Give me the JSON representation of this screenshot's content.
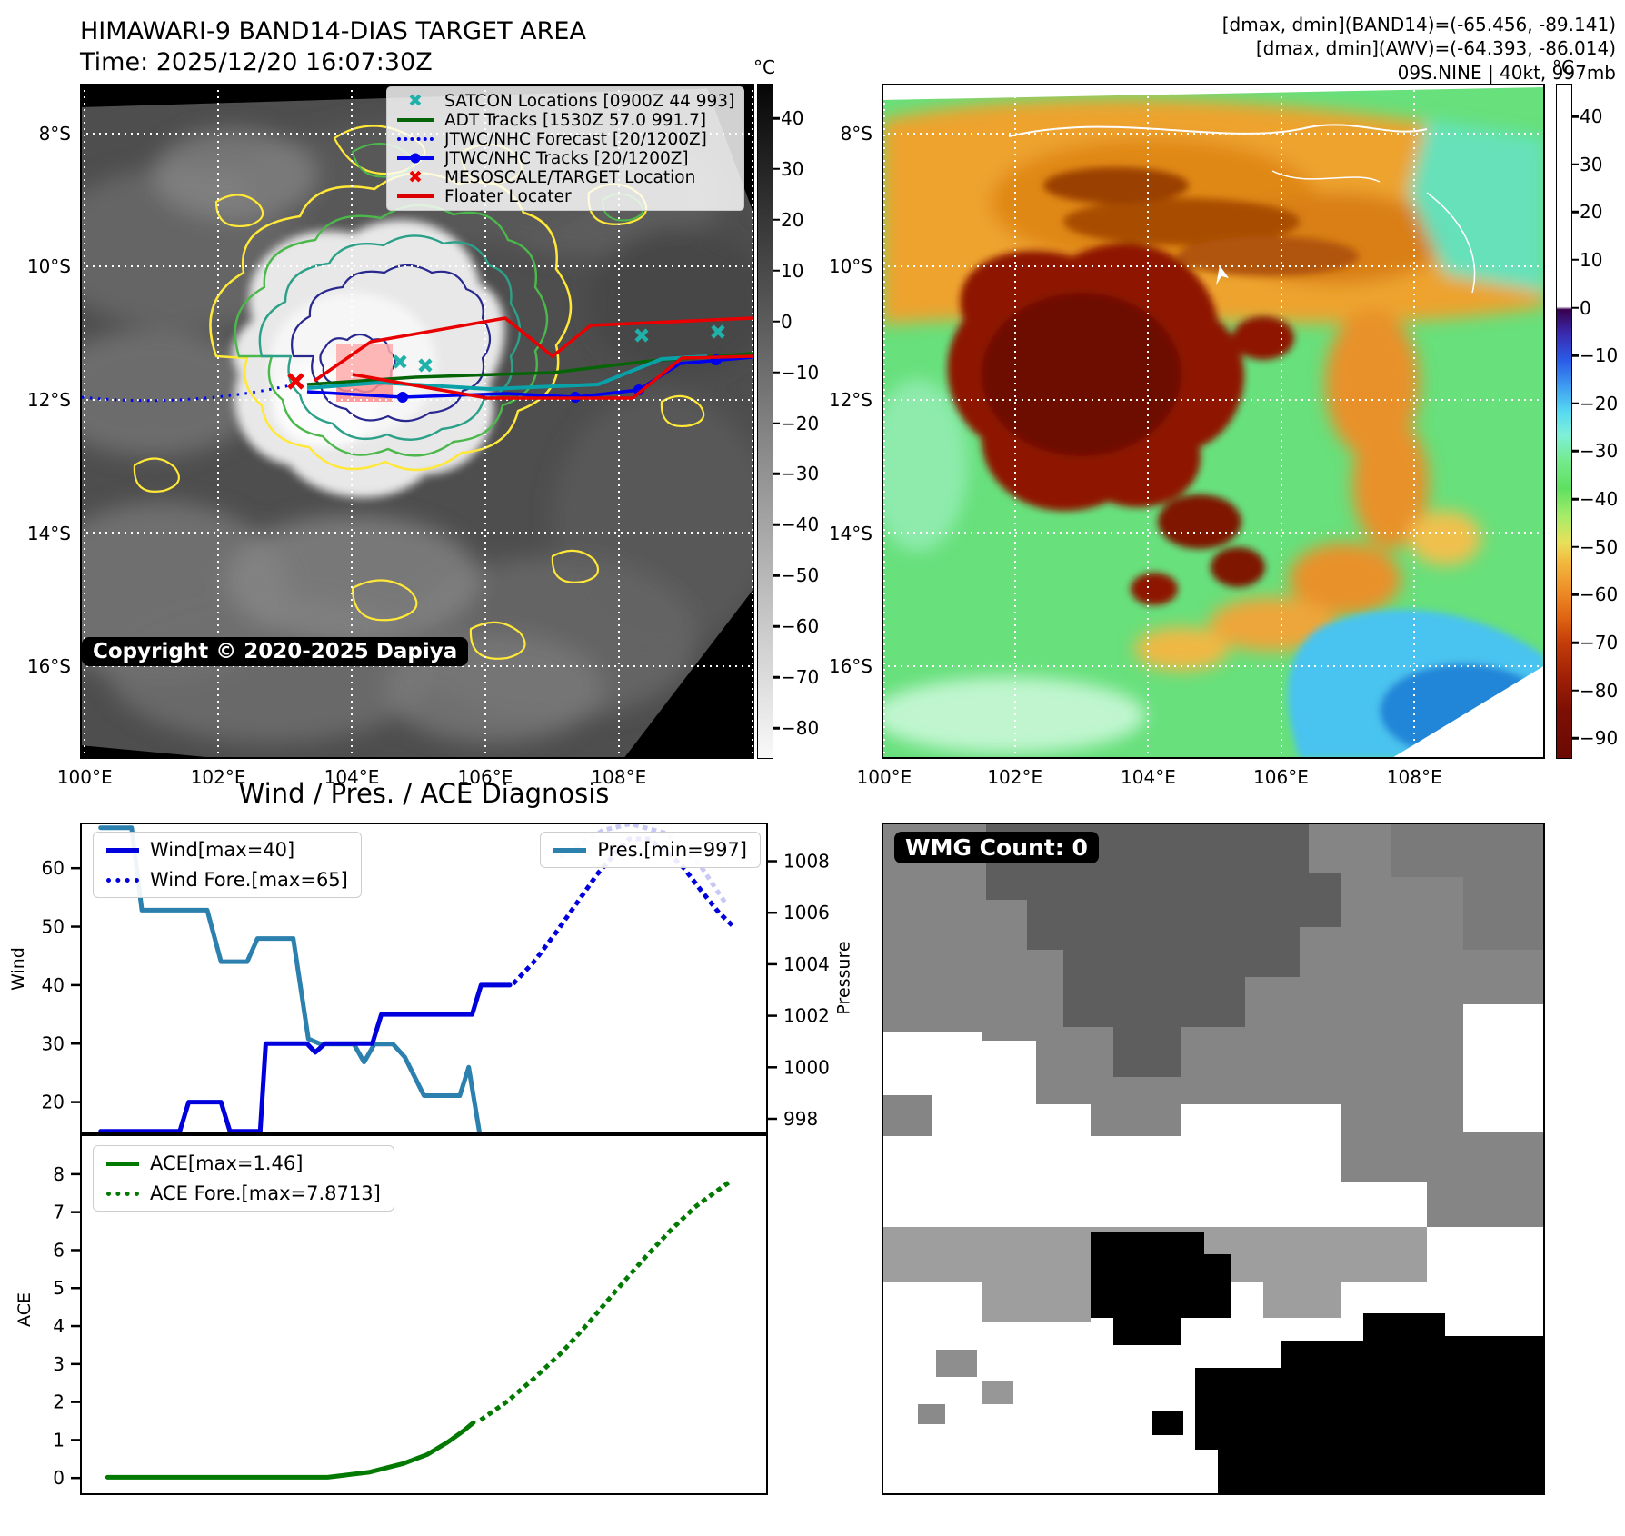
{
  "header": {
    "title": "HIMAWARI-9 BAND14-DIAS TARGET AREA",
    "time": "Time: 2025/12/20 16:07:30Z",
    "info_lines": [
      "[dmax, dmin](BAND14)=(-65.456, -89.141)",
      "[dmax, dmin](AWV)=(-64.393, -86.014)",
      "09S.NINE | 40kt, 997mb"
    ]
  },
  "left_map": {
    "copyright": "Copyright © 2020-2025 Dapiya",
    "lat_ticks": [
      "8°S",
      "10°S",
      "12°S",
      "14°S",
      "16°S"
    ],
    "lon_ticks": [
      "100°E",
      "102°E",
      "104°E",
      "106°E",
      "108°E"
    ],
    "colorbar": {
      "unit": "°C",
      "ticks": [
        "40",
        "30",
        "20",
        "10",
        "0",
        "−10",
        "−20",
        "−30",
        "−40",
        "−50",
        "−60",
        "−70",
        "−80"
      ]
    },
    "legend": [
      {
        "label": "SATCON Locations [0900Z 44 993]",
        "marker": "x",
        "color": "#1fb2aa"
      },
      {
        "label": "ADT Tracks [1530Z 57.0 991.7]",
        "marker": "line",
        "color": "#056405"
      },
      {
        "label": "JTWC/NHC Forecast [20/1200Z]",
        "marker": "dotted",
        "color": "#0000ee"
      },
      {
        "label": "JTWC/NHC Tracks [20/1200Z]",
        "marker": "line-dot",
        "color": "#0000ee"
      },
      {
        "label": "MESOSCALE/TARGET Location",
        "marker": "x",
        "color": "#ee0000"
      },
      {
        "label": "Floater Locater",
        "marker": "line",
        "color": "#dd0000"
      }
    ]
  },
  "right_map": {
    "lat_ticks": [
      "8°S",
      "10°S",
      "12°S",
      "14°S",
      "16°S"
    ],
    "lon_ticks": [
      "100°E",
      "102°E",
      "104°E",
      "106°E",
      "108°E"
    ],
    "colorbar": {
      "unit": "°C",
      "ticks": [
        "40",
        "30",
        "20",
        "10",
        "0",
        "−10",
        "−20",
        "−30",
        "−40",
        "−50",
        "−60",
        "−70",
        "−80",
        "−90"
      ]
    }
  },
  "wmg": {
    "label": "WMG Count: 0"
  },
  "chart_title": "Wind / Pres. / ACE Diagnosis",
  "chart_data": [
    {
      "type": "line",
      "title": "Wind / Pres. / ACE Diagnosis",
      "ylabel": "Wind",
      "y2label": "Pressure",
      "ylim": [
        14.5,
        67.8
      ],
      "y2lim": [
        997.4,
        1009.5
      ],
      "yticks": [
        20,
        30,
        40,
        50,
        60
      ],
      "y2ticks": [
        998,
        1000,
        1002,
        1004,
        1006,
        1008
      ],
      "legend_left": [
        {
          "label": "Wind[max=40]",
          "style": "solid",
          "color": "#0000dd"
        },
        {
          "label": "Wind Fore.[max=65]",
          "style": "dotted",
          "color": "#0000dd"
        }
      ],
      "legend_right": [
        {
          "label": "Pres.[min=997]",
          "style": "solid",
          "color": "#2c80ad"
        }
      ],
      "series": [
        {
          "name": "Pres.",
          "axis": "y2",
          "style": "solid",
          "color": "#2c80ad",
          "width": 5,
          "points": [
            [
              0.03,
              1009.3
            ],
            [
              0.075,
              1009.3
            ],
            [
              0.09,
              1006.1
            ],
            [
              0.185,
              1006.1
            ],
            [
              0.205,
              1004.1
            ],
            [
              0.243,
              1004.1
            ],
            [
              0.258,
              1005.0
            ],
            [
              0.31,
              1005.0
            ],
            [
              0.332,
              1001.1
            ],
            [
              0.35,
              1000.9
            ],
            [
              0.398,
              1000.9
            ],
            [
              0.413,
              1000.2
            ],
            [
              0.428,
              1000.9
            ],
            [
              0.455,
              1000.9
            ],
            [
              0.472,
              1000.4
            ],
            [
              0.5,
              998.9
            ],
            [
              0.552,
              998.9
            ],
            [
              0.565,
              1000.0
            ],
            [
              0.583,
              997.1
            ]
          ]
        },
        {
          "name": "Pres. Fore.",
          "axis": "y2",
          "style": "dotted",
          "color": "#c8c8f4",
          "width": 5,
          "points": [
            [
              0.7,
              1008.2
            ],
            [
              0.76,
              1009.2
            ],
            [
              0.8,
              1009.45
            ],
            [
              0.85,
              1009.1
            ],
            [
              0.9,
              1007.9
            ],
            [
              0.94,
              1006.3
            ]
          ]
        },
        {
          "name": "Wind",
          "axis": "y",
          "style": "solid",
          "color": "#0000dd",
          "width": 5,
          "points": [
            [
              0.03,
              15
            ],
            [
              0.145,
              15
            ],
            [
              0.158,
              20
            ],
            [
              0.205,
              20
            ],
            [
              0.218,
              15
            ],
            [
              0.262,
              15
            ],
            [
              0.27,
              30
            ],
            [
              0.33,
              30
            ],
            [
              0.342,
              28.5
            ],
            [
              0.356,
              30
            ],
            [
              0.425,
              30
            ],
            [
              0.438,
              35
            ],
            [
              0.57,
              35
            ],
            [
              0.583,
              40
            ],
            [
              0.625,
              40
            ]
          ]
        },
        {
          "name": "Wind Fore.",
          "axis": "y",
          "style": "dotted",
          "color": "#0000dd",
          "width": 5,
          "points": [
            [
              0.632,
              40.5
            ],
            [
              0.66,
              44
            ],
            [
              0.692,
              49
            ],
            [
              0.722,
              54
            ],
            [
              0.752,
              59
            ],
            [
              0.778,
              62.5
            ],
            [
              0.798,
              65
            ],
            [
              0.826,
              65
            ],
            [
              0.852,
              63
            ],
            [
              0.878,
              60
            ],
            [
              0.904,
              56
            ],
            [
              0.928,
              52.5
            ],
            [
              0.95,
              50
            ]
          ]
        }
      ]
    },
    {
      "type": "line",
      "ylabel": "ACE",
      "ylim": [
        -0.45,
        9.05
      ],
      "yticks": [
        0,
        1,
        2,
        3,
        4,
        5,
        6,
        7,
        8
      ],
      "legend_left": [
        {
          "label": "ACE[max=1.46]",
          "style": "solid",
          "color": "#027a02"
        },
        {
          "label": "ACE Fore.[max=7.8713]",
          "style": "dotted",
          "color": "#027a02"
        }
      ],
      "series": [
        {
          "name": "ACE",
          "axis": "y",
          "style": "solid",
          "color": "#027a02",
          "width": 5,
          "points": [
            [
              0.04,
              0.02
            ],
            [
              0.36,
              0.02
            ],
            [
              0.42,
              0.15
            ],
            [
              0.47,
              0.38
            ],
            [
              0.505,
              0.62
            ],
            [
              0.535,
              0.95
            ],
            [
              0.558,
              1.25
            ],
            [
              0.572,
              1.46
            ]
          ]
        },
        {
          "name": "ACE Fore.",
          "axis": "y",
          "style": "dotted",
          "color": "#027a02",
          "width": 5,
          "points": [
            [
              0.585,
              1.56
            ],
            [
              0.62,
              2.0
            ],
            [
              0.66,
              2.62
            ],
            [
              0.7,
              3.3
            ],
            [
              0.74,
              4.1
            ],
            [
              0.78,
              4.95
            ],
            [
              0.82,
              5.78
            ],
            [
              0.86,
              6.55
            ],
            [
              0.895,
              7.15
            ],
            [
              0.925,
              7.55
            ],
            [
              0.95,
              7.87
            ]
          ]
        }
      ]
    }
  ]
}
